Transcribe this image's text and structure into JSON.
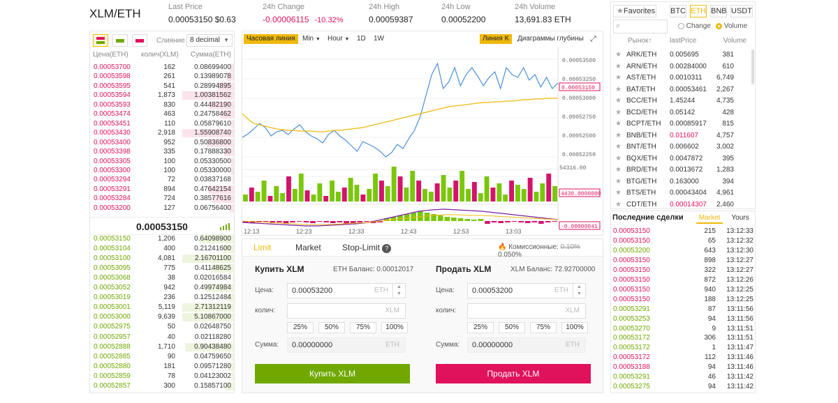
{
  "header": {
    "symbol": "XLM/ETH",
    "last_price": {
      "label": "Last Price",
      "value": "0.00053150",
      "usd": "$0.63"
    },
    "change": {
      "label": "24h Change",
      "value": "-0.00006115",
      "pct": "-10.32%"
    },
    "high": {
      "label": "24h High",
      "value": "0.00059387"
    },
    "low": {
      "label": "24h Low",
      "value": "0.00052200"
    },
    "volume": {
      "label": "24h Volume",
      "value": "13,691.83 ETH"
    }
  },
  "orderbook": {
    "merge_label": "Слияние",
    "decimal": "8 decimal",
    "col_price": "Цена(ETH)",
    "col_qty": "колич(XLM)",
    "col_sum": "Сумма(ETH)",
    "asks": [
      {
        "p": "0.00053700",
        "q": "162",
        "s": "0.08699400",
        "d": 0.03
      },
      {
        "p": "0.00053598",
        "q": "261",
        "s": "0.13989078",
        "d": 0.05
      },
      {
        "p": "0.00053595",
        "q": "541",
        "s": "0.28994895",
        "d": 0.11
      },
      {
        "p": "0.00053594",
        "q": "1,873",
        "s": "1.00381562",
        "d": 0.38
      },
      {
        "p": "0.00053593",
        "q": "830",
        "s": "0.44482190",
        "d": 0.17
      },
      {
        "p": "0.00053474",
        "q": "463",
        "s": "0.24758462",
        "d": 0.09
      },
      {
        "p": "0.00053451",
        "q": "110",
        "s": "0.05879610",
        "d": 0.02
      },
      {
        "p": "0.00053430",
        "q": "2,918",
        "s": "1.55908740",
        "d": 0.59
      },
      {
        "p": "0.00053400",
        "q": "952",
        "s": "0.50836800",
        "d": 0.19
      },
      {
        "p": "0.00053398",
        "q": "335",
        "s": "0.17888330",
        "d": 0.07
      },
      {
        "p": "0.00053305",
        "q": "100",
        "s": "0.05330500",
        "d": 0.02
      },
      {
        "p": "0.00053300",
        "q": "100",
        "s": "0.05330000",
        "d": 0.02
      },
      {
        "p": "0.00053294",
        "q": "72",
        "s": "0.03837168",
        "d": 0.01
      },
      {
        "p": "0.00053291",
        "q": "894",
        "s": "0.47642154",
        "d": 0.18
      },
      {
        "p": "0.00053284",
        "q": "724",
        "s": "0.38577616",
        "d": 0.15
      },
      {
        "p": "0.00053200",
        "q": "127",
        "s": "0.06756400",
        "d": 0.03
      }
    ],
    "mid_price": "0.00053150",
    "bids": [
      {
        "p": "0.00053150",
        "q": "1,206",
        "s": "0.64098900",
        "d": 0.24
      },
      {
        "p": "0.00053104",
        "q": "400",
        "s": "0.21241600",
        "d": 0.08
      },
      {
        "p": "0.00053100",
        "q": "4,081",
        "s": "2.16701100",
        "d": 0.82
      },
      {
        "p": "0.00053095",
        "q": "775",
        "s": "0.41148625",
        "d": 0.16
      },
      {
        "p": "0.00053068",
        "q": "38",
        "s": "0.02016584",
        "d": 0.01
      },
      {
        "p": "0.00053052",
        "q": "942",
        "s": "0.49974984",
        "d": 0.19
      },
      {
        "p": "0.00053019",
        "q": "236",
        "s": "0.12512484",
        "d": 0.05
      },
      {
        "p": "0.00053001",
        "q": "5,119",
        "s": "2.71312119",
        "d": 1.0
      },
      {
        "p": "0.00053000",
        "q": "9,639",
        "s": "5.10867000",
        "d": 1.0
      },
      {
        "p": "0.00052975",
        "q": "50",
        "s": "0.02648750",
        "d": 0.01
      },
      {
        "p": "0.00052957",
        "q": "40",
        "s": "0.02118280",
        "d": 0.01
      },
      {
        "p": "0.00052888",
        "q": "1,710",
        "s": "0.90438480",
        "d": 0.34
      },
      {
        "p": "0.00052885",
        "q": "90",
        "s": "0.04759650",
        "d": 0.02
      },
      {
        "p": "0.00052880",
        "q": "181",
        "s": "0.09571280",
        "d": 0.04
      },
      {
        "p": "0.00052859",
        "q": "78",
        "s": "0.04123002",
        "d": 0.02
      },
      {
        "p": "0.00052857",
        "q": "300",
        "s": "0.15857100",
        "d": 0.06
      }
    ]
  },
  "chart": {
    "tab_timeline": "Часовая линия",
    "tab_min": "Min",
    "tab_hour": "Hour",
    "tab_1d": "1D",
    "tab_1w": "1W",
    "tab_kline": "Линия K",
    "tab_depth": "Диаграммы глубины",
    "price_ticks": [
      "0.00053500",
      "0.00053250",
      "0.00053000",
      "0.00052750",
      "0.00052500",
      "0.00052250"
    ],
    "current_price_tag": "0.00053150",
    "vol_max": "54316.00",
    "vol_tag": "4430.0000000",
    "macd_tag": "-0.00000041",
    "time_ticks": [
      "12:13",
      "12:23",
      "12:33",
      "12:43",
      "12:53",
      "13:03"
    ]
  },
  "chart_data": {
    "type": "line",
    "x": [
      "12:13",
      "12:23",
      "12:33",
      "12:43",
      "12:53",
      "13:03"
    ],
    "series": [],
    "ylim": [
      0.000522,
      0.000537
    ]
  },
  "trade": {
    "tab_limit": "Limit",
    "tab_market": "Market",
    "tab_stop": "Stop-Limit",
    "fee_label": "Комиссионные:",
    "fee_old": "0.10%",
    "fee_new": "0.050%",
    "buy": {
      "title": "Купить XLM",
      "balance": "ETH Баланс: 0.00012017",
      "price_label": "Цена:",
      "price": "0.00053200",
      "price_unit": "ETH",
      "qty_label": "колич:",
      "qty_unit": "XLM",
      "sum_label": "Сумма:",
      "sum": "0.00000000",
      "sum_unit": "ETH",
      "button": "Купить XLM"
    },
    "sell": {
      "title": "Продать XLM",
      "balance": "XLM Баланс: 72.92700000",
      "price_label": "Цена:",
      "price": "0.00053200",
      "price_unit": "ETH",
      "qty_label": "колич:",
      "qty_unit": "XLM",
      "sum_label": "Сумма:",
      "sum": "0.00000000",
      "sum_unit": "ETH",
      "button": "Продать XLM"
    },
    "pcts": [
      "25%",
      "50%",
      "75%",
      "100%"
    ]
  },
  "markets": {
    "favorites": "Favorites",
    "quotes": [
      "BTC",
      "ETH",
      "BNB",
      "USDT"
    ],
    "change_label": "Change",
    "volume_label": "Volume",
    "col_pair": "Рынок↑",
    "col_last": "lastPrice",
    "col_vol": "Volume",
    "rows": [
      {
        "n": "ARK/ETH",
        "lp": "0.005695",
        "v": "381",
        "c": ""
      },
      {
        "n": "ARN/ETH",
        "lp": "0.00284000",
        "v": "610",
        "c": ""
      },
      {
        "n": "AST/ETH",
        "lp": "0.0010311",
        "v": "6,749",
        "c": ""
      },
      {
        "n": "BAT/ETH",
        "lp": "0.00053461",
        "v": "2,267",
        "c": ""
      },
      {
        "n": "BCC/ETH",
        "lp": "1.45244",
        "v": "4,735",
        "c": ""
      },
      {
        "n": "BCD/ETH",
        "lp": "0.05142",
        "v": "428",
        "c": ""
      },
      {
        "n": "BCPT/ETH",
        "lp": "0.00085917",
        "v": "815",
        "c": ""
      },
      {
        "n": "BNB/ETH",
        "lp": "0.011607",
        "v": "4,757",
        "c": "red"
      },
      {
        "n": "BNT/ETH",
        "lp": "0.006602",
        "v": "3,002",
        "c": ""
      },
      {
        "n": "BQX/ETH",
        "lp": "0.0047872",
        "v": "395",
        "c": ""
      },
      {
        "n": "BRD/ETH",
        "lp": "0.0013672",
        "v": "1,283",
        "c": ""
      },
      {
        "n": "BTG/ETH",
        "lp": "0.163000",
        "v": "394",
        "c": ""
      },
      {
        "n": "BTS/ETH",
        "lp": "0.00043404",
        "v": "4,961",
        "c": ""
      },
      {
        "n": "CDT/ETH",
        "lp": "0.00014307",
        "v": "2,460",
        "c": "red"
      }
    ]
  },
  "trades": {
    "title": "Последние сделки",
    "tab_market": "Market",
    "tab_yours": "Yours",
    "rows": [
      {
        "p": "0.00053150",
        "q": "215",
        "t": "13:12:33",
        "c": "red"
      },
      {
        "p": "0.00053150",
        "q": "65",
        "t": "13:12:32",
        "c": "red"
      },
      {
        "p": "0.00053200",
        "q": "643",
        "t": "13:12:30",
        "c": "green"
      },
      {
        "p": "0.00053150",
        "q": "898",
        "t": "13:12:27",
        "c": "red"
      },
      {
        "p": "0.00053150",
        "q": "322",
        "t": "13:12:27",
        "c": "red"
      },
      {
        "p": "0.00053150",
        "q": "872",
        "t": "13:12:26",
        "c": "red"
      },
      {
        "p": "0.00053150",
        "q": "940",
        "t": "13:12:25",
        "c": "red"
      },
      {
        "p": "0.00053150",
        "q": "188",
        "t": "13:12:25",
        "c": "red"
      },
      {
        "p": "0.00053291",
        "q": "87",
        "t": "13:11:56",
        "c": "green"
      },
      {
        "p": "0.00053253",
        "q": "94",
        "t": "13:11:56",
        "c": "green"
      },
      {
        "p": "0.00053270",
        "q": "9",
        "t": "13:11:51",
        "c": "green"
      },
      {
        "p": "0.00053172",
        "q": "306",
        "t": "13:11:51",
        "c": "green"
      },
      {
        "p": "0.00053172",
        "q": "1",
        "t": "13:11:47",
        "c": "green"
      },
      {
        "p": "0.00053172",
        "q": "112",
        "t": "13:11:46",
        "c": "red"
      },
      {
        "p": "0.00053188",
        "q": "94",
        "t": "13:11:46",
        "c": "red"
      },
      {
        "p": "0.00053291",
        "q": "46",
        "t": "13:11:42",
        "c": "green"
      },
      {
        "p": "0.00053275",
        "q": "94",
        "t": "13:11:42",
        "c": "green"
      }
    ]
  }
}
